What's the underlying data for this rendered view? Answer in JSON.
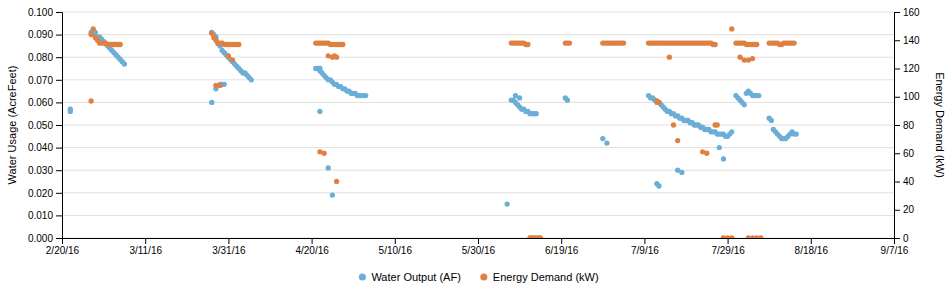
{
  "chart_data": {
    "type": "scatter",
    "ylabel": "Water Usage (AcreFeet)",
    "y2label": "Energy Demand (kW)",
    "xlim": [
      0,
      200
    ],
    "xticks": [
      {
        "value": 0,
        "label": "2/20/16"
      },
      {
        "value": 20,
        "label": "3/11/16"
      },
      {
        "value": 40,
        "label": "3/31/16"
      },
      {
        "value": 60,
        "label": "4/20/16"
      },
      {
        "value": 80,
        "label": "5/10/16"
      },
      {
        "value": 100,
        "label": "5/30/16"
      },
      {
        "value": 120,
        "label": "6/19/16"
      },
      {
        "value": 140,
        "label": "7/9/16"
      },
      {
        "value": 160,
        "label": "7/29/16"
      },
      {
        "value": 180,
        "label": "8/18/16"
      },
      {
        "value": 200,
        "label": "9/7/16"
      }
    ],
    "ylim": [
      0.0,
      0.1
    ],
    "yticks": [
      {
        "value": 0.0,
        "label": "0.000"
      },
      {
        "value": 0.01,
        "label": "0.010"
      },
      {
        "value": 0.02,
        "label": "0.020"
      },
      {
        "value": 0.03,
        "label": "0.030"
      },
      {
        "value": 0.04,
        "label": "0.040"
      },
      {
        "value": 0.05,
        "label": "0.050"
      },
      {
        "value": 0.06,
        "label": "0.060"
      },
      {
        "value": 0.07,
        "label": "0.070"
      },
      {
        "value": 0.08,
        "label": "0.080"
      },
      {
        "value": 0.09,
        "label": "0.090"
      },
      {
        "value": 0.1,
        "label": "0.100"
      }
    ],
    "y2lim": [
      0.0,
      160.0
    ],
    "y2ticks": [
      0,
      20,
      40,
      60,
      80,
      100,
      120,
      140,
      160
    ],
    "grid": true,
    "legend": "bottom",
    "marker": "circle",
    "series": [
      {
        "name": "Water Output (AF)",
        "color": "#6BAED6",
        "x": [
          2,
          2,
          7,
          7.5,
          8,
          8,
          9,
          9.5,
          10,
          10.5,
          11,
          11.5,
          12,
          12.5,
          13,
          13.5,
          14,
          14.5,
          15,
          36,
          36.5,
          37,
          37,
          37.5,
          38,
          38.5,
          39,
          39.5,
          40,
          40.5,
          41,
          41.5,
          42,
          42.5,
          43,
          43.5,
          44,
          44.5,
          45,
          45.5,
          36,
          37,
          38,
          38.5,
          39,
          61,
          61.5,
          62,
          62,
          62.5,
          63,
          63.5,
          64,
          64.5,
          65,
          65.5,
          66,
          66.5,
          67,
          67.5,
          68,
          68.5,
          69,
          69.5,
          70,
          70.5,
          71,
          71.5,
          72,
          72.5,
          73,
          62,
          64,
          65,
          107,
          108,
          108.5,
          109,
          109.5,
          110,
          110.5,
          111,
          111.5,
          112,
          112.5,
          113,
          113.5,
          114,
          109,
          110,
          121,
          121.5,
          130,
          131,
          141,
          141.5,
          142,
          142.5,
          143,
          143.5,
          144,
          144.5,
          145,
          145.5,
          146,
          146.5,
          147,
          147.5,
          148,
          148.5,
          149,
          149.5,
          150,
          150.5,
          151,
          151.5,
          152,
          152.5,
          153,
          153.5,
          154,
          154.5,
          155,
          155.5,
          156,
          156.5,
          157,
          157.5,
          158,
          158.5,
          159,
          159.5,
          160,
          160.5,
          161,
          162,
          162.5,
          163,
          163.5,
          164,
          164.5,
          165,
          165.5,
          166,
          166.5,
          167,
          167.5,
          143,
          143.5,
          148,
          149,
          158,
          159,
          170,
          170.5,
          171,
          171.5,
          172,
          172.5,
          173,
          173.5,
          174,
          174.5,
          175,
          175.5,
          176,
          176.5
        ],
        "values": [
          0.057,
          0.056,
          0.091,
          0.092,
          0.091,
          0.09,
          0.089,
          0.088,
          0.087,
          0.086,
          0.085,
          0.084,
          0.083,
          0.082,
          0.081,
          0.08,
          0.079,
          0.078,
          0.077,
          0.091,
          0.09,
          0.089,
          0.088,
          0.086,
          0.085,
          0.083,
          0.082,
          0.081,
          0.08,
          0.079,
          0.078,
          0.077,
          0.076,
          0.075,
          0.074,
          0.073,
          0.073,
          0.072,
          0.071,
          0.07,
          0.06,
          0.066,
          0.068,
          0.068,
          0.068,
          0.075,
          0.075,
          0.075,
          0.074,
          0.073,
          0.072,
          0.071,
          0.07,
          0.07,
          0.069,
          0.068,
          0.068,
          0.067,
          0.067,
          0.066,
          0.066,
          0.065,
          0.065,
          0.064,
          0.064,
          0.064,
          0.063,
          0.063,
          0.063,
          0.063,
          0.063,
          0.056,
          0.031,
          0.019,
          0.015,
          0.061,
          0.061,
          0.06,
          0.059,
          0.058,
          0.057,
          0.057,
          0.056,
          0.056,
          0.055,
          0.055,
          0.055,
          0.055,
          0.063,
          0.062,
          0.062,
          0.061,
          0.044,
          0.042,
          0.063,
          0.062,
          0.062,
          0.061,
          0.06,
          0.06,
          0.059,
          0.058,
          0.057,
          0.056,
          0.056,
          0.055,
          0.055,
          0.054,
          0.054,
          0.053,
          0.053,
          0.052,
          0.052,
          0.052,
          0.051,
          0.051,
          0.05,
          0.05,
          0.05,
          0.049,
          0.049,
          0.048,
          0.048,
          0.048,
          0.047,
          0.047,
          0.047,
          0.046,
          0.046,
          0.046,
          0.046,
          0.045,
          0.045,
          0.046,
          0.047,
          0.063,
          0.062,
          0.061,
          0.06,
          0.059,
          0.064,
          0.065,
          0.064,
          0.063,
          0.063,
          0.063,
          0.063,
          0.024,
          0.023,
          0.03,
          0.029,
          0.04,
          0.035,
          0.053,
          0.052,
          0.048,
          0.047,
          0.046,
          0.045,
          0.044,
          0.044,
          0.044,
          0.045,
          0.046,
          0.047,
          0.046,
          0.046
        ]
      },
      {
        "name": "Energy Demand (kW)",
        "color": "#E08040",
        "axis": "y2",
        "x": [
          7,
          7.5,
          8,
          8.5,
          9,
          9.5,
          10,
          10.5,
          11,
          11.5,
          12,
          12.5,
          13,
          13.5,
          14,
          7,
          36,
          36.5,
          37,
          37.5,
          38,
          38.5,
          39,
          39.5,
          40,
          40.5,
          41,
          41.5,
          42,
          42.5,
          37,
          38,
          40,
          41,
          61,
          61.5,
          62,
          62.5,
          63,
          63.5,
          64,
          64.5,
          65,
          65.5,
          66,
          66.5,
          67,
          67.5,
          64,
          65,
          65.5,
          66,
          62,
          63,
          66,
          108,
          108.5,
          109,
          109.5,
          110,
          110.5,
          111,
          111.5,
          112,
          112.5,
          113,
          113.5,
          114,
          114.5,
          115,
          121,
          121.5,
          122,
          130,
          130.5,
          131,
          131.5,
          132,
          132.5,
          133,
          133.5,
          134,
          134.5,
          135,
          141,
          141.5,
          142,
          142.5,
          143,
          143.5,
          144,
          144.5,
          145,
          145.5,
          146,
          146.5,
          147,
          147.5,
          148,
          148.5,
          149,
          149.5,
          150,
          150.5,
          151,
          151.5,
          152,
          152.5,
          153,
          153.5,
          154,
          154.5,
          155,
          155.5,
          156,
          156.5,
          157,
          143,
          143.5,
          146,
          147,
          148,
          154,
          155,
          157,
          157.5,
          161,
          162,
          162.5,
          163,
          163.5,
          164,
          164.5,
          165,
          165.5,
          166,
          166.5,
          167,
          163,
          164,
          165,
          166,
          170,
          170.5,
          171,
          171.5,
          172,
          172.5,
          173,
          173.5,
          174,
          174.5,
          175,
          175.5,
          176,
          165,
          166,
          167,
          168,
          159,
          160,
          161
        ],
        "values": [
          144,
          148,
          142,
          140,
          138,
          138,
          138,
          138,
          137,
          137,
          137,
          137,
          137,
          137,
          137,
          97,
          145,
          142,
          140,
          138,
          138,
          138,
          137,
          137,
          137,
          137,
          137,
          137,
          137,
          137,
          108,
          108,
          129,
          126,
          138,
          138,
          138,
          138,
          138,
          138,
          138,
          137,
          137,
          137,
          137,
          137,
          137,
          137,
          129,
          128,
          129,
          128,
          61,
          60,
          40,
          138,
          138,
          138,
          138,
          138,
          138,
          138,
          137,
          137,
          0,
          0,
          0,
          0,
          0,
          0,
          138,
          138,
          138,
          138,
          138,
          138,
          138,
          138,
          138,
          138,
          138,
          138,
          138,
          138,
          138,
          138,
          138,
          138,
          138,
          138,
          138,
          138,
          138,
          138,
          138,
          138,
          138,
          138,
          138,
          138,
          138,
          138,
          138,
          138,
          138,
          138,
          138,
          138,
          138,
          138,
          138,
          138,
          138,
          138,
          138,
          137,
          137,
          97,
          96,
          128,
          80,
          69,
          61,
          60,
          80,
          80,
          148,
          138,
          138,
          138,
          138,
          138,
          137,
          137,
          137,
          137,
          137,
          137,
          128,
          126,
          126,
          127,
          138,
          138,
          138,
          138,
          138,
          137,
          137,
          138,
          138,
          138,
          138,
          138,
          138,
          0,
          0,
          0,
          0,
          0,
          0,
          0
        ]
      }
    ]
  }
}
